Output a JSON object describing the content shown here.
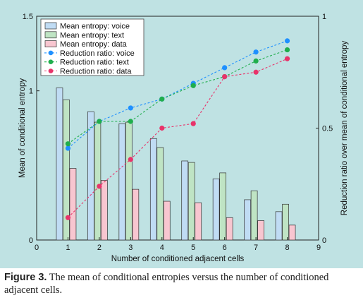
{
  "chart_data": {
    "type": "bar",
    "xlabel": "Number of conditioned adjacent cells",
    "ylabel": "Mean of conditional entropy",
    "y2label": "Reduction ratio over mean of conditional entropy",
    "xlim": [
      0,
      9
    ],
    "ylim": [
      0,
      1.5
    ],
    "y2lim": [
      0,
      1
    ],
    "x_ticks": [
      "0",
      "1",
      "2",
      "3",
      "4",
      "5",
      "6",
      "7",
      "8",
      "9"
    ],
    "y_ticks": [
      "0",
      "1",
      "1.5"
    ],
    "y2_ticks": [
      "0",
      "0.5",
      "1"
    ],
    "categories": [
      1,
      2,
      3,
      4,
      5,
      6,
      7,
      8
    ],
    "bar_series": [
      {
        "name": "Mean entropy: voice",
        "color": "#c0dcf4",
        "values": [
          1.02,
          0.86,
          0.78,
          0.68,
          0.53,
          0.41,
          0.27,
          0.19
        ]
      },
      {
        "name": "Mean entropy: text",
        "color": "#bfe4c4",
        "values": [
          0.94,
          0.79,
          0.79,
          0.62,
          0.52,
          0.45,
          0.33,
          0.24
        ]
      },
      {
        "name": "Mean entropy: data",
        "color": "#f8c6d0",
        "values": [
          0.48,
          0.4,
          0.34,
          0.26,
          0.25,
          0.15,
          0.13,
          0.1
        ]
      }
    ],
    "line_series": [
      {
        "name": "Reduction ratio: voice",
        "color": "#1e90ff",
        "values": [
          0.41,
          0.53,
          0.59,
          0.63,
          0.7,
          0.77,
          0.84,
          0.89
        ]
      },
      {
        "name": "Reduction ratio: text",
        "color": "#1fae4c",
        "values": [
          0.43,
          0.53,
          0.53,
          0.63,
          0.69,
          0.73,
          0.8,
          0.85
        ]
      },
      {
        "name": "Reduction ratio: data",
        "color": "#e8336a",
        "values": [
          0.1,
          0.24,
          0.36,
          0.5,
          0.52,
          0.73,
          0.75,
          0.81
        ]
      }
    ],
    "legend_position": "top-left"
  },
  "caption": {
    "label": "Figure 3.",
    "text": " The mean of conditional entropies versus the number of conditioned adjacent cells."
  }
}
